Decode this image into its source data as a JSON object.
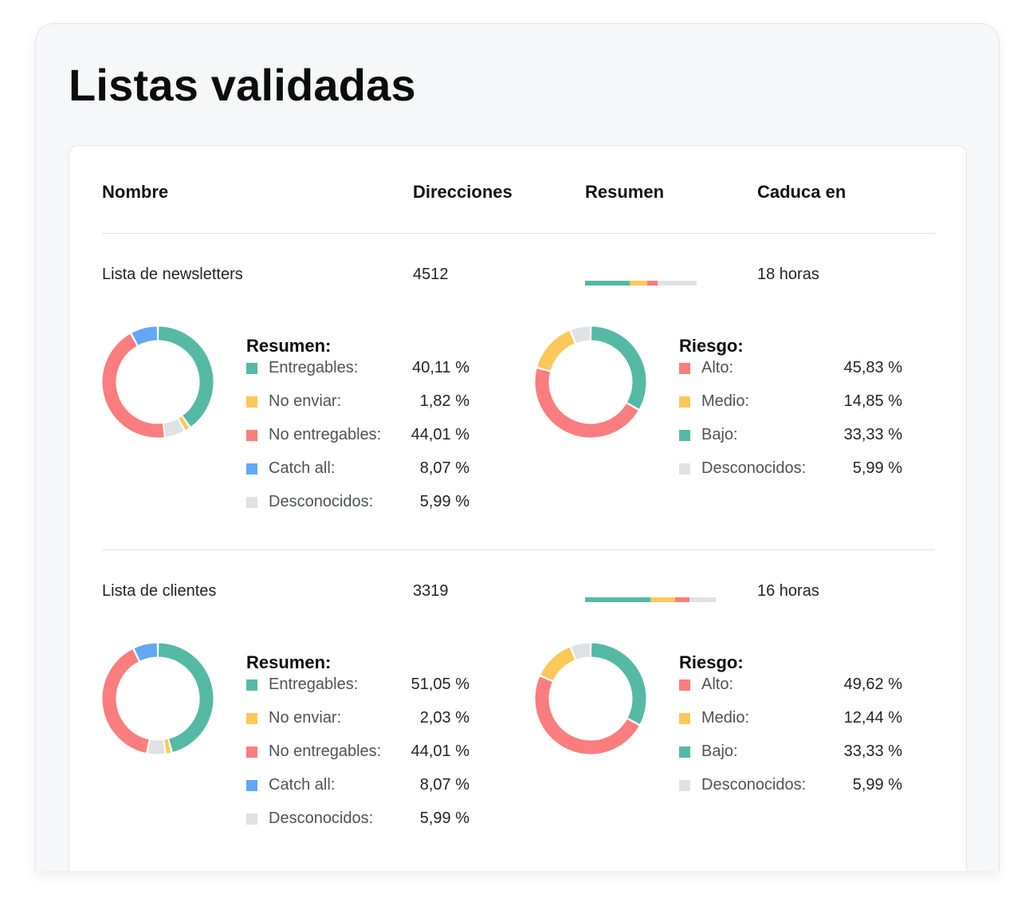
{
  "page_title": "Listas validadas",
  "table": {
    "headers": {
      "name": "Nombre",
      "addresses": "Direcciones",
      "summary": "Resumen",
      "expires": "Caduca en"
    }
  },
  "colors": {
    "deliverable": "#55b9a6",
    "do_not_send": "#fcc85a",
    "undeliverable": "#fb7d7d",
    "catch_all": "#63a8f6",
    "unknown": "#dfe2e4"
  },
  "lists": [
    {
      "name": "Lista de newsletters",
      "addresses": "4512",
      "expires": "18 horas",
      "summary_bar": [
        {
          "key": "deliverable",
          "fraction": 0.4
        },
        {
          "key": "do_not_send",
          "fraction": 0.16
        },
        {
          "key": "undeliverable",
          "fraction": 0.09
        },
        {
          "key": "unknown",
          "fraction": 0.35
        }
      ],
      "resumen": {
        "title": "Resumen:",
        "items": [
          {
            "key": "deliverable",
            "label": "Entregables:",
            "value": "40,11 %",
            "pct": 40.11
          },
          {
            "key": "do_not_send",
            "label": "No enviar:",
            "value": "1,82 %",
            "pct": 1.82
          },
          {
            "key": "undeliverable",
            "label": "No entregables:",
            "value": "44,01 %",
            "pct": 44.01
          },
          {
            "key": "catch_all",
            "label": "Catch all:",
            "value": "8,07 %",
            "pct": 8.07
          },
          {
            "key": "unknown",
            "label": "Desconocidos:",
            "value": "5,99 %",
            "pct": 5.99
          }
        ],
        "donut_order": [
          "deliverable",
          "do_not_send",
          "unknown",
          "undeliverable",
          "catch_all"
        ]
      },
      "riesgo": {
        "title": "Riesgo:",
        "items": [
          {
            "key": "undeliverable",
            "label": "Alto:",
            "value": "45,83 %",
            "pct": 45.83
          },
          {
            "key": "do_not_send",
            "label": "Medio:",
            "value": "14,85 %",
            "pct": 14.85
          },
          {
            "key": "deliverable",
            "label": "Bajo:",
            "value": "33,33 %",
            "pct": 33.33
          },
          {
            "key": "unknown",
            "label": "Desconocidos:",
            "value": "5,99 %",
            "pct": 5.99
          }
        ],
        "donut_order": [
          "deliverable",
          "undeliverable",
          "do_not_send",
          "unknown"
        ]
      }
    },
    {
      "name": "Lista de clientes",
      "addresses": "3319",
      "expires": "16 horas",
      "summary_bar": [
        {
          "key": "deliverable",
          "fraction": 0.5
        },
        {
          "key": "do_not_send",
          "fraction": 0.19
        },
        {
          "key": "undeliverable",
          "fraction": 0.11
        },
        {
          "key": "unknown",
          "fraction": 0.2
        }
      ],
      "resumen": {
        "title": "Resumen:",
        "items": [
          {
            "key": "deliverable",
            "label": "Entregables:",
            "value": "51,05 %",
            "pct": 51.05
          },
          {
            "key": "do_not_send",
            "label": "No enviar:",
            "value": "2,03 %",
            "pct": 2.03
          },
          {
            "key": "undeliverable",
            "label": "No entregables:",
            "value": "44,01 %",
            "pct": 44.01
          },
          {
            "key": "catch_all",
            "label": "Catch all:",
            "value": "8,07 %",
            "pct": 8.07
          },
          {
            "key": "unknown",
            "label": "Desconocidos:",
            "value": "5,99 %",
            "pct": 5.99
          }
        ],
        "donut_order": [
          "deliverable",
          "do_not_send",
          "unknown",
          "undeliverable",
          "catch_all"
        ]
      },
      "riesgo": {
        "title": "Riesgo:",
        "items": [
          {
            "key": "undeliverable",
            "label": "Alto:",
            "value": "49,62 %",
            "pct": 49.62
          },
          {
            "key": "do_not_send",
            "label": "Medio:",
            "value": "12,44 %",
            "pct": 12.44
          },
          {
            "key": "deliverable",
            "label": "Bajo:",
            "value": "33,33 %",
            "pct": 33.33
          },
          {
            "key": "unknown",
            "label": "Desconocidos:",
            "value": "5,99 %",
            "pct": 5.99
          }
        ],
        "donut_order": [
          "deliverable",
          "undeliverable",
          "do_not_send",
          "unknown"
        ]
      }
    }
  ]
}
